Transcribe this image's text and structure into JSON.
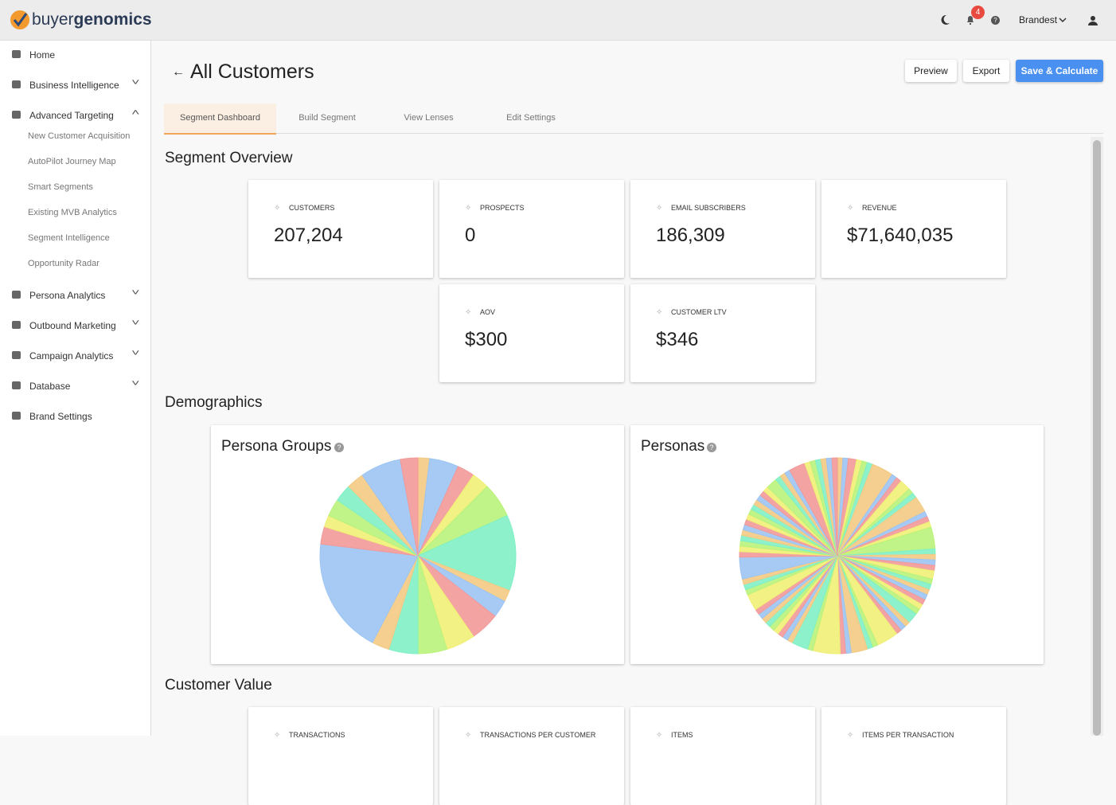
{
  "header": {
    "logo_light": "buyer",
    "logo_bold": "genomics",
    "notifications": "4",
    "user": "Brandest"
  },
  "nav": [
    {
      "label": "Home"
    },
    {
      "label": "Business Intelligence",
      "chevron": "down"
    },
    {
      "label": "Advanced Targeting",
      "chevron": "up",
      "children": [
        "New Customer Acquisition",
        "AutoPilot Journey Map",
        "Smart Segments",
        "Existing MVB Analytics",
        "Segment Intelligence",
        "Opportunity Radar"
      ]
    },
    {
      "label": "Persona Analytics",
      "chevron": "down"
    },
    {
      "label": "Outbound Marketing",
      "chevron": "down"
    },
    {
      "label": "Campaign Analytics",
      "chevron": "down"
    },
    {
      "label": "Database",
      "chevron": "down"
    },
    {
      "label": "Brand Settings"
    }
  ],
  "page": {
    "title": "All Customers",
    "buttons": [
      "Preview",
      "Export",
      "Save & Calculate"
    ],
    "tabs": [
      "Segment Dashboard",
      "Build Segment",
      "View Lenses",
      "Edit Settings"
    ],
    "active_tab": 0
  },
  "sections": {
    "overview": "Segment Overview",
    "demographics": "Demographics",
    "value": "Customer Value"
  },
  "overview_cards": [
    {
      "label": "CUSTOMERS",
      "value": "207,204"
    },
    {
      "label": "PROSPECTS",
      "value": "0"
    },
    {
      "label": "EMAIL SUBSCRIBERS",
      "value": "186,309"
    },
    {
      "label": "REVENUE",
      "value": "$71,640,035"
    },
    {
      "label": "AOV",
      "value": "$300"
    },
    {
      "label": "CUSTOMER LTV",
      "value": "$346"
    }
  ],
  "value_cards": [
    {
      "label": "TRANSACTIONS"
    },
    {
      "label": "TRANSACTIONS PER CUSTOMER"
    },
    {
      "label": "ITEMS"
    },
    {
      "label": "ITEMS PER TRANSACTION"
    }
  ],
  "chart_data": [
    {
      "type": "pie",
      "title": "Persona Groups",
      "colors": [
        "#fbd7a8",
        "#b3cdf6",
        "#f7abab",
        "#f9f8a8",
        "#d2f7a8",
        "#a8f2d6"
      ],
      "values": [
        2,
        5,
        3,
        3,
        6,
        13,
        2,
        3,
        5,
        5,
        5,
        5,
        3,
        20,
        3,
        2,
        3,
        3,
        3,
        7,
        3
      ]
    },
    {
      "type": "pie",
      "title": "Personas",
      "colors": [
        "#fbd7a8",
        "#b3cdf6",
        "#f7abab",
        "#f9f8a8",
        "#d2f7a8",
        "#a8f2d6"
      ],
      "values": [
        1,
        1,
        1.5,
        1,
        1,
        1,
        4,
        1,
        1,
        2,
        1,
        1,
        3,
        1,
        1,
        1,
        4,
        1,
        1,
        1,
        1,
        1.5,
        1,
        1,
        1,
        1,
        1,
        1,
        1,
        2,
        1,
        1,
        1,
        4,
        1,
        1,
        3,
        1,
        1,
        5,
        1,
        3,
        1,
        1,
        1,
        1,
        1,
        1,
        1,
        1,
        1,
        3,
        1,
        1,
        1,
        4,
        1,
        1,
        1,
        1,
        1,
        1,
        1,
        1,
        1,
        1,
        1,
        1,
        1,
        1,
        2,
        1,
        1,
        1,
        3,
        1,
        1,
        1,
        1,
        1,
        1
      ]
    }
  ]
}
